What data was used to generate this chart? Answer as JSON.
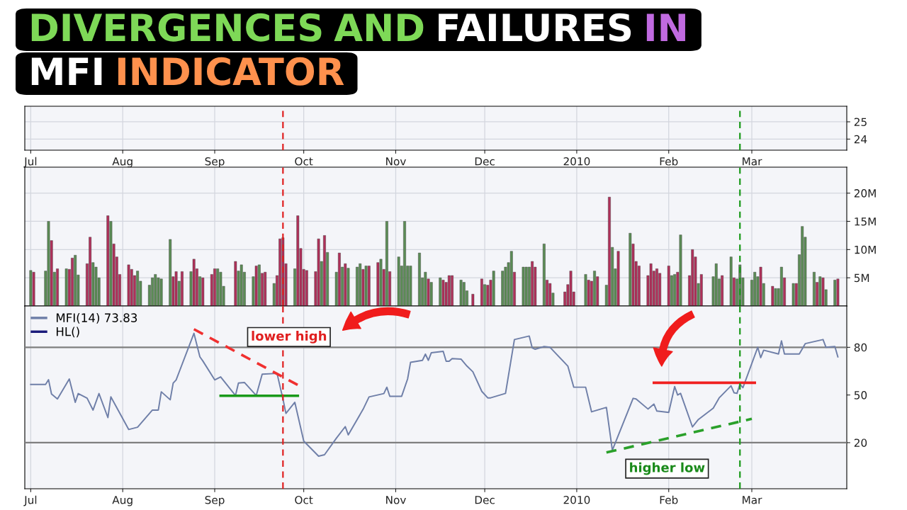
{
  "chart_data": [
    {
      "type": "line",
      "title": "DIVERGENCES AND FAILURES IN MFI INDICATOR",
      "xlim": [
        "2009-06-29",
        "2010-04-02"
      ],
      "xticks": [
        {
          "value": "2009-07-01",
          "label": "Jul"
        },
        {
          "value": "2009-08-01",
          "label": "Aug"
        },
        {
          "value": "2009-09-01",
          "label": "Sep"
        },
        {
          "value": "2009-10-01",
          "label": "Oct"
        },
        {
          "value": "2009-11-01",
          "label": "Nov"
        },
        {
          "value": "2009-12-01",
          "label": "Dec"
        },
        {
          "value": "2010-01-01",
          "label": "2010"
        },
        {
          "value": "2010-02-01",
          "label": "Feb"
        },
        {
          "value": "2010-03-01",
          "label": "Mar"
        }
      ],
      "ylim": [
        23.36,
        25.9
      ],
      "yticks": [
        24,
        25
      ],
      "grid": true,
      "ref_lines": [
        {
          "axis": "x",
          "value": "2009-09-24",
          "color": "#e02020",
          "line_style": "dashed"
        },
        {
          "axis": "x",
          "value": "2010-02-25",
          "color": "#1a9a1a",
          "line_style": "dashed"
        }
      ]
    },
    {
      "type": "bar",
      "tick_labels": "y",
      "xlim": [
        "2009-06-29",
        "2010-04-02"
      ],
      "xticks": [
        {
          "value": "2009-07-01",
          "label": null
        },
        {
          "value": "2009-08-01",
          "label": null
        },
        {
          "value": "2009-09-01",
          "label": null
        },
        {
          "value": "2009-10-01",
          "label": null
        },
        {
          "value": "2009-11-01",
          "label": null
        },
        {
          "value": "2009-12-01",
          "label": null
        },
        {
          "value": "2010-01-01",
          "label": null
        },
        {
          "value": "2010-02-01",
          "label": null
        },
        {
          "value": "2010-03-01",
          "label": null
        }
      ],
      "ylim": [
        0,
        24.6
      ],
      "yticks": [
        {
          "value": 5,
          "label": "5M"
        },
        {
          "value": 10,
          "label": "10M"
        },
        {
          "value": 15,
          "label": "15M"
        },
        {
          "value": 20,
          "label": "20M"
        }
      ],
      "grid": true,
      "x": [
        "2009-07-01",
        "2009-07-02",
        "2009-07-06",
        "2009-07-07",
        "2009-07-08",
        "2009-07-09",
        "2009-07-10",
        "2009-07-13",
        "2009-07-14",
        "2009-07-15",
        "2009-07-16",
        "2009-07-17",
        "2009-07-20",
        "2009-07-21",
        "2009-07-22",
        "2009-07-23",
        "2009-07-24",
        "2009-07-27",
        "2009-07-28",
        "2009-07-29",
        "2009-07-30",
        "2009-07-31",
        "2009-08-03",
        "2009-08-04",
        "2009-08-05",
        "2009-08-06",
        "2009-08-07",
        "2009-08-10",
        "2009-08-11",
        "2009-08-12",
        "2009-08-13",
        "2009-08-14",
        "2009-08-17",
        "2009-08-18",
        "2009-08-19",
        "2009-08-20",
        "2009-08-21",
        "2009-08-24",
        "2009-08-25",
        "2009-08-26",
        "2009-08-27",
        "2009-08-28",
        "2009-08-31",
        "2009-09-01",
        "2009-09-02",
        "2009-09-03",
        "2009-09-04",
        "2009-09-08",
        "2009-09-09",
        "2009-09-10",
        "2009-09-11",
        "2009-09-14",
        "2009-09-15",
        "2009-09-16",
        "2009-09-17",
        "2009-09-18",
        "2009-09-21",
        "2009-09-22",
        "2009-09-23",
        "2009-09-24",
        "2009-09-25",
        "2009-09-28",
        "2009-09-29",
        "2009-09-30",
        "2009-10-01",
        "2009-10-02",
        "2009-10-05",
        "2009-10-06",
        "2009-10-07",
        "2009-10-08",
        "2009-10-09",
        "2009-10-12",
        "2009-10-13",
        "2009-10-14",
        "2009-10-15",
        "2009-10-16",
        "2009-10-19",
        "2009-10-20",
        "2009-10-21",
        "2009-10-22",
        "2009-10-23",
        "2009-10-26",
        "2009-10-27",
        "2009-10-28",
        "2009-10-29",
        "2009-10-30",
        "2009-11-02",
        "2009-11-03",
        "2009-11-04",
        "2009-11-05",
        "2009-11-06",
        "2009-11-09",
        "2009-11-10",
        "2009-11-11",
        "2009-11-12",
        "2009-11-13",
        "2009-11-16",
        "2009-11-17",
        "2009-11-18",
        "2009-11-19",
        "2009-11-20",
        "2009-11-23",
        "2009-11-24",
        "2009-11-25",
        "2009-11-27",
        "2009-11-30",
        "2009-12-01",
        "2009-12-02",
        "2009-12-03",
        "2009-12-04",
        "2009-12-07",
        "2009-12-08",
        "2009-12-09",
        "2009-12-10",
        "2009-12-11",
        "2009-12-14",
        "2009-12-15",
        "2009-12-16",
        "2009-12-17",
        "2009-12-18",
        "2009-12-21",
        "2009-12-22",
        "2009-12-23",
        "2009-12-24",
        "2009-12-28",
        "2009-12-29",
        "2009-12-30",
        "2009-12-31",
        "2010-01-04",
        "2010-01-05",
        "2010-01-06",
        "2010-01-07",
        "2010-01-08",
        "2010-01-11",
        "2010-01-12",
        "2010-01-13",
        "2010-01-14",
        "2010-01-15",
        "2010-01-19",
        "2010-01-20",
        "2010-01-21",
        "2010-01-22",
        "2010-01-25",
        "2010-01-26",
        "2010-01-27",
        "2010-01-28",
        "2010-01-29",
        "2010-02-01",
        "2010-02-02",
        "2010-02-03",
        "2010-02-04",
        "2010-02-05",
        "2010-02-08",
        "2010-02-09",
        "2010-02-10",
        "2010-02-11",
        "2010-02-12",
        "2010-02-16",
        "2010-02-17",
        "2010-02-18",
        "2010-02-19",
        "2010-02-22",
        "2010-02-23",
        "2010-02-24",
        "2010-02-25",
        "2010-02-26",
        "2010-03-01",
        "2010-03-02",
        "2010-03-03",
        "2010-03-04",
        "2010-03-05",
        "2010-03-08",
        "2010-03-09",
        "2010-03-10",
        "2010-03-11",
        "2010-03-12",
        "2010-03-15",
        "2010-03-16",
        "2010-03-17",
        "2010-03-18",
        "2010-03-19",
        "2010-03-22",
        "2010-03-23",
        "2010-03-24",
        "2010-03-25",
        "2010-03-26",
        "2010-03-29",
        "2010-03-30"
      ],
      "values": [
        6.3,
        6.0,
        6.2,
        15,
        11.6,
        6.0,
        6.6,
        6.6,
        6.5,
        8.5,
        9.0,
        5.5,
        7.5,
        12.2,
        7.7,
        6.9,
        5.0,
        16,
        15,
        11.0,
        8.7,
        5.6,
        7.3,
        6.5,
        5.4,
        6.2,
        4.4,
        3.7,
        5.0,
        5.6,
        5.0,
        4.8,
        11.8,
        5.2,
        6.1,
        4.4,
        6.1,
        6.1,
        8.3,
        6.6,
        5.2,
        5.0,
        5.6,
        6.6,
        6.6,
        6.0,
        3.5,
        7.9,
        6.2,
        7.3,
        6.0,
        5.2,
        7.1,
        7.3,
        5.8,
        6.0,
        4.0,
        5.4,
        11.9,
        12.1,
        7.5,
        6.6,
        16,
        10.2,
        6.5,
        6.3,
        6.1,
        11.9,
        7.9,
        12.5,
        9.5,
        6.0,
        9.4,
        6.9,
        7.5,
        6.7,
        6.9,
        7.5,
        6.5,
        7.1,
        7.1,
        7.7,
        8.3,
        6.5,
        15,
        6.1,
        8.7,
        7.1,
        15,
        7.1,
        7.1,
        9.4,
        5.0,
        6.0,
        4.8,
        4.2,
        5.0,
        4.6,
        4.2,
        5.4,
        5.4,
        4.6,
        4.2,
        2.7,
        2.1,
        4.8,
        3.8,
        3.7,
        4.6,
        6.2,
        6.2,
        6.9,
        7.7,
        9.7,
        6.0,
        6.9,
        6.9,
        6.9,
        7.9,
        6.9,
        11.0,
        4.6,
        4.0,
        2.3,
        2.5,
        3.8,
        6.2,
        2.5,
        5.6,
        4.6,
        4.4,
        6.2,
        5.2,
        3.7,
        19.3,
        10.4,
        6.6,
        9.7,
        12.9,
        11.0,
        7.9,
        7.1,
        5.4,
        7.5,
        6.2,
        6.6,
        5.8,
        7.1,
        5.4,
        5.6,
        6.0,
        12.6,
        5.4,
        10.0,
        8.7,
        4.0,
        5.6,
        5.2,
        7.5,
        4.8,
        5.4,
        8.7,
        5.0,
        4.8,
        7.3,
        5.0,
        4.6,
        6.0,
        5.2,
        6.9,
        4.0,
        3.5,
        3.1,
        3.1,
        6.9,
        5.0,
        4.0,
        4.0,
        9.1,
        14.1,
        12.2,
        6.0,
        4.2,
        5.2,
        5.0,
        2.9,
        4.6,
        4.8
      ],
      "colors": [
        "#5b8c55",
        "#b0305a",
        "#5b8c55",
        "#5b8c55",
        "#b0305a",
        "#5b8c55",
        "#b0305a",
        "#5b8c55",
        "#b0305a",
        "#b0305a",
        "#5b8c55",
        "#5b8c55",
        "#b0305a",
        "#b0305a",
        "#5b8c55",
        "#5b8c55",
        "#5b8c55",
        "#b0305a",
        "#5b8c55",
        "#b0305a",
        "#b0305a",
        "#b0305a",
        "#b0305a",
        "#b0305a",
        "#b0305a",
        "#5b8c55",
        "#5b8c55",
        "#5b8c55",
        "#5b8c55",
        "#5b8c55",
        "#5b8c55",
        "#5b8c55",
        "#5b8c55",
        "#b0305a",
        "#b0305a",
        "#5b8c55",
        "#b0305a",
        "#5b8c55",
        "#b0305a",
        "#b0305a",
        "#5b8c55",
        "#b0305a",
        "#b0305a",
        "#b0305a",
        "#5b8c55",
        "#5b8c55",
        "#5b8c55",
        "#b0305a",
        "#5b8c55",
        "#5b8c55",
        "#5b8c55",
        "#5b8c55",
        "#b0305a",
        "#5b8c55",
        "#b0305a",
        "#b0305a",
        "#5b8c55",
        "#b0305a",
        "#b0305a",
        "#b0305a",
        "#b0305a",
        "#5b8c55",
        "#b0305a",
        "#b0305a",
        "#b0305a",
        "#b0305a",
        "#b0305a",
        "#b0305a",
        "#5b8c55",
        "#b0305a",
        "#5b8c55",
        "#5b8c55",
        "#b0305a",
        "#5b8c55",
        "#b0305a",
        "#5b8c55",
        "#5b8c55",
        "#5b8c55",
        "#b0305a",
        "#5b8c55",
        "#b0305a",
        "#b0305a",
        "#5b8c55",
        "#b0305a",
        "#5b8c55",
        "#b0305a",
        "#5b8c55",
        "#5b8c55",
        "#5b8c55",
        "#5b8c55",
        "#5b8c55",
        "#5b8c55",
        "#5b8c55",
        "#5b8c55",
        "#b0305a",
        "#5b8c55",
        "#5b8c55",
        "#b0305a",
        "#b0305a",
        "#b0305a",
        "#b0305a",
        "#5b8c55",
        "#5b8c55",
        "#5b8c55",
        "#b0305a",
        "#b0305a",
        "#5b8c55",
        "#b0305a",
        "#b0305a",
        "#5b8c55",
        "#5b8c55",
        "#5b8c55",
        "#5b8c55",
        "#5b8c55",
        "#b0305a",
        "#5b8c55",
        "#5b8c55",
        "#5b8c55",
        "#b0305a",
        "#b0305a",
        "#5b8c55",
        "#b0305a",
        "#b0305a",
        "#5b8c55",
        "#b0305a",
        "#b0305a",
        "#b0305a",
        "#b0305a",
        "#5b8c55",
        "#b0305a",
        "#b0305a",
        "#5b8c55",
        "#b0305a",
        "#5b8c55",
        "#b0305a",
        "#5b8c55",
        "#5b8c55",
        "#b0305a",
        "#5b8c55",
        "#b0305a",
        "#b0305a",
        "#b0305a",
        "#b0305a",
        "#b0305a",
        "#b0305a",
        "#b0305a",
        "#b0305a",
        "#b0305a",
        "#5b8c55",
        "#5b8c55",
        "#b0305a",
        "#5b8c55",
        "#b0305a",
        "#b0305a",
        "#b0305a",
        "#5b8c55",
        "#b0305a",
        "#5b8c55",
        "#5b8c55",
        "#5b8c55",
        "#b0305a",
        "#5b8c55",
        "#b0305a",
        "#5b8c55",
        "#5b8c55",
        "#5b8c55",
        "#5b8c55",
        "#5b8c55",
        "#5b8c55",
        "#b0305a",
        "#5b8c55",
        "#b0305a",
        "#5b8c55",
        "#5b8c55",
        "#5b8c55",
        "#b0305a",
        "#5b8c55",
        "#b0305a",
        "#5b8c55",
        "#5b8c55",
        "#5b8c55",
        "#5b8c55",
        "#b0305a",
        "#5b8c55",
        "#b0305a",
        "#5b8c55",
        "#5b8c55",
        "#b0305a"
      ],
      "ref_lines": [
        {
          "axis": "x",
          "value": "2009-09-24",
          "color": "#e02020",
          "line_style": "dashed"
        },
        {
          "axis": "x",
          "value": "2010-02-25",
          "color": "#1a9a1a",
          "line_style": "dashed"
        }
      ]
    },
    {
      "type": "line",
      "legend": "top left",
      "xlim": [
        "2009-06-29",
        "2010-04-02"
      ],
      "xticks": [
        {
          "value": "2009-07-01",
          "label": "Jul"
        },
        {
          "value": "2009-08-01",
          "label": "Aug"
        },
        {
          "value": "2009-09-01",
          "label": "Sep"
        },
        {
          "value": "2009-10-01",
          "label": "Oct"
        },
        {
          "value": "2009-11-01",
          "label": "Nov"
        },
        {
          "value": "2009-12-01",
          "label": "Dec"
        },
        {
          "value": "2010-01-01",
          "label": "2010"
        },
        {
          "value": "2010-02-01",
          "label": "Feb"
        },
        {
          "value": "2010-03-01",
          "label": "Mar"
        }
      ],
      "ylim": [
        -9,
        106
      ],
      "yticks": [
        20,
        50,
        80
      ],
      "grid": "x",
      "series": [
        {
          "name": "MFI(14) 73.83",
          "color": "#6f7fa8",
          "x": [
            "2009-07-01",
            "2009-07-06",
            "2009-07-07",
            "2009-07-08",
            "2009-07-10",
            "2009-07-14",
            "2009-07-16",
            "2009-07-17",
            "2009-07-20",
            "2009-07-22",
            "2009-07-24",
            "2009-07-27",
            "2009-07-28",
            "2009-08-03",
            "2009-08-06",
            "2009-08-11",
            "2009-08-13",
            "2009-08-14",
            "2009-08-17",
            "2009-08-18",
            "2009-08-19",
            "2009-08-25",
            "2009-08-27",
            "2009-08-28",
            "2009-09-01",
            "2009-09-03",
            "2009-09-08",
            "2009-09-09",
            "2009-09-11",
            "2009-09-15",
            "2009-09-17",
            "2009-09-22",
            "2009-09-24",
            "2009-09-25",
            "2009-09-28",
            "2009-10-01",
            "2009-10-06",
            "2009-10-08",
            "2009-10-12",
            "2009-10-15",
            "2009-10-16",
            "2009-10-21",
            "2009-10-23",
            "2009-10-28",
            "2009-10-29",
            "2009-10-30",
            "2009-11-03",
            "2009-11-05",
            "2009-11-06",
            "2009-11-10",
            "2009-11-11",
            "2009-11-12",
            "2009-11-13",
            "2009-11-17",
            "2009-11-18",
            "2009-11-19",
            "2009-11-20",
            "2009-11-23",
            "2009-11-25",
            "2009-11-27",
            "2009-11-30",
            "2009-12-02",
            "2009-12-03",
            "2009-12-08",
            "2009-12-11",
            "2009-12-16",
            "2009-12-17",
            "2009-12-18",
            "2009-12-21",
            "2009-12-23",
            "2009-12-29",
            "2009-12-31",
            "2010-01-04",
            "2010-01-06",
            "2010-01-11",
            "2010-01-13",
            "2010-01-20",
            "2010-01-21",
            "2010-01-25",
            "2010-01-27",
            "2010-01-28",
            "2010-02-01",
            "2010-02-03",
            "2010-02-04",
            "2010-02-05",
            "2010-02-09",
            "2010-02-11",
            "2010-02-16",
            "2010-02-18",
            "2010-02-22",
            "2010-02-23",
            "2010-02-24",
            "2010-02-25",
            "2010-02-26",
            "2010-03-03",
            "2010-03-04",
            "2010-03-05",
            "2010-03-10",
            "2010-03-11",
            "2010-03-12",
            "2010-03-17",
            "2010-03-19",
            "2010-03-25",
            "2010-03-26",
            "2010-03-29",
            "2010-03-30"
          ],
          "values": [
            56.6,
            56.6,
            59.6,
            50.6,
            47.5,
            60.1,
            45.4,
            50.9,
            48,
            40.5,
            50.9,
            35.8,
            48.8,
            28.3,
            29.7,
            40.5,
            40.5,
            52,
            47,
            57.5,
            59.5,
            88.8,
            74,
            71.4,
            59.5,
            61.4,
            49.7,
            57.5,
            57.9,
            49.7,
            63.1,
            63.6,
            47.4,
            38.4,
            45.4,
            21,
            11.5,
            12.4,
            22.8,
            30.1,
            24.9,
            41,
            48.8,
            50.9,
            54.9,
            49.2,
            49.2,
            60.1,
            70.6,
            71.8,
            75.7,
            71.8,
            76.6,
            77.5,
            71.2,
            71.2,
            72.9,
            72.6,
            68.2,
            64.6,
            52.3,
            48.2,
            48.2,
            51,
            84.9,
            87.1,
            79.6,
            78.8,
            80.5,
            80,
            68.2,
            54.9,
            54.9,
            39.4,
            42.2,
            15.2,
            47.9,
            47.5,
            41.2,
            44.3,
            39.9,
            39,
            55.3,
            50,
            51,
            29.9,
            34.6,
            41.7,
            48.2,
            55.8,
            51.4,
            51,
            56.8,
            54.6,
            80,
            73.5,
            78.2,
            75.8,
            84.1,
            75.8,
            75.8,
            82.3,
            84.9,
            80,
            80.5,
            74
          ]
        },
        {
          "color": "#f03030",
          "line_style": "dashed",
          "x": [
            "2009-08-25",
            "2009-09-29"
          ],
          "values": [
            91.4,
            56.3
          ]
        },
        {
          "color": "#1a9a1a",
          "line_style": "solid",
          "x": [
            "2009-09-03",
            "2009-09-29"
          ],
          "values": [
            49.5,
            49.5
          ]
        },
        {
          "color": "#f02020",
          "line_style": "solid",
          "x": [
            "2010-01-27",
            "2010-03-02"
          ],
          "values": [
            57.7,
            57.7
          ]
        },
        {
          "color": "#2aa02a",
          "line_style": "dashed",
          "x": [
            "2010-01-11",
            "2010-03-01"
          ],
          "values": [
            13.8,
            35
          ]
        }
      ],
      "ref_lines": [
        {
          "axis": "y",
          "value": 80,
          "color": "#7f7f7f",
          "label": "HL()"
        },
        {
          "axis": "y",
          "value": 20,
          "color": "#7f7f7f"
        },
        {
          "axis": "x",
          "value": "2009-09-24",
          "color": "#e02020",
          "line_style": "dashed"
        },
        {
          "axis": "x",
          "value": "2010-02-25",
          "color": "#1a9a1a",
          "line_style": "dashed"
        }
      ],
      "annotations": [
        "lower high",
        "higher low"
      ]
    }
  ]
}
